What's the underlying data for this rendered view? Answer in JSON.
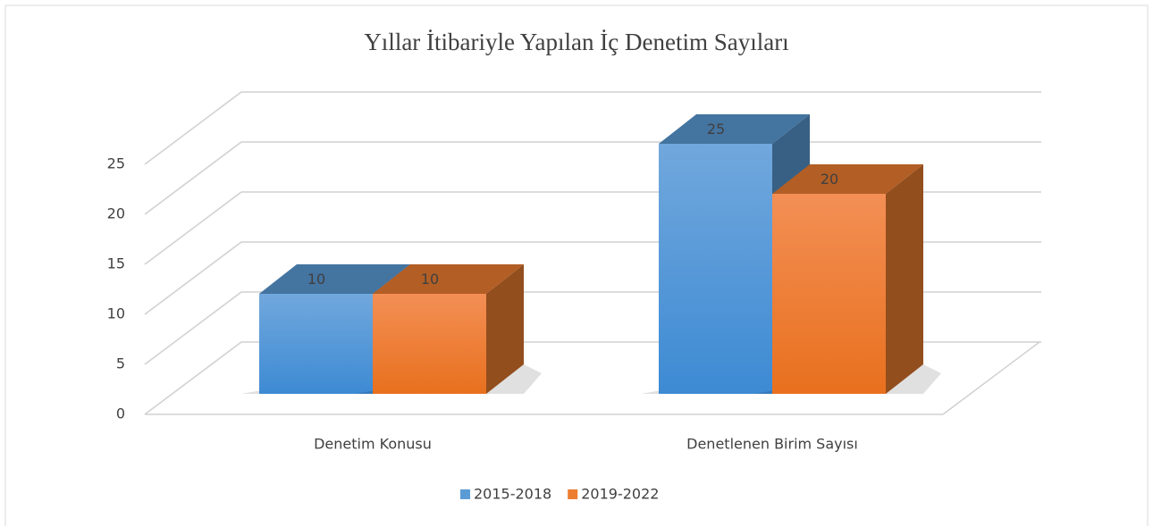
{
  "chart_data": {
    "type": "bar3d",
    "title": "Yıllar İtibariyle Yapılan İç Denetim Sayıları",
    "categories": [
      "Denetim Konusu",
      "Denetlenen Birim Sayısı"
    ],
    "series": [
      {
        "name": "2015-2018",
        "color": "#5b9bd5",
        "values": [
          10,
          25
        ]
      },
      {
        "name": "2019-2022",
        "color": "#ed7d31",
        "values": [
          10,
          20
        ]
      }
    ],
    "ylim": [
      0,
      25
    ],
    "yticks": [
      0,
      5,
      10,
      15,
      20,
      25
    ],
    "grid": true,
    "legend": "bottom"
  }
}
